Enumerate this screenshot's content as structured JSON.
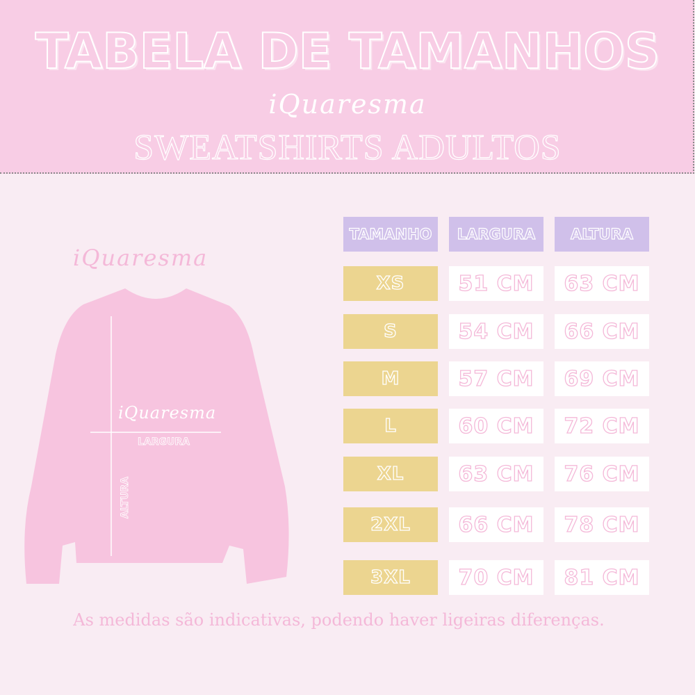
{
  "header": {
    "title": "TABELA DE TAMANHOS",
    "brand": "iQuaresma",
    "subtitle": "SWEATSHIRTS ADULTOS"
  },
  "illustration": {
    "brand_top": "iQuaresma",
    "brand_center": "iQuaresma",
    "width_label": "LARGURA",
    "height_label": "ALTURA",
    "garment_color": "#f7c4df"
  },
  "table": {
    "headers": [
      "TAMANHO",
      "LARGURA",
      "ALTURA"
    ],
    "rows": [
      [
        "XS",
        "51 CM",
        "63 CM"
      ],
      [
        "S",
        "54 CM",
        "66 CM"
      ],
      [
        "M",
        "57 CM",
        "69 CM"
      ],
      [
        "L",
        "60 CM",
        "72 CM"
      ],
      [
        "XL",
        "63 CM",
        "76 CM"
      ],
      [
        "2XL",
        "66 CM",
        "78 CM"
      ],
      [
        "3XL",
        "70 CM",
        "81 CM"
      ]
    ],
    "colors": {
      "header": "#d0c0ea",
      "size": "#ecd590",
      "value": "#ffffff",
      "value_text": "#f4b8d8"
    }
  },
  "footer": "As medidas são indicativas, podendo haver ligeiras diferenças."
}
